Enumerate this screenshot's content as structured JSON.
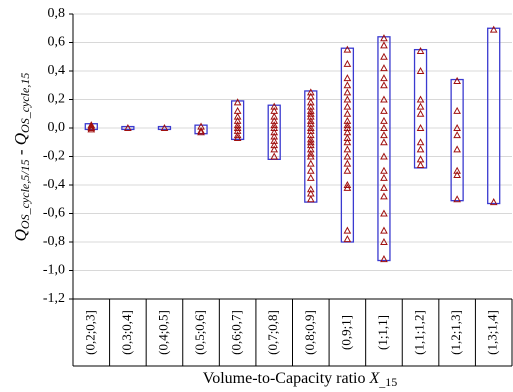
{
  "chart_data": {
    "type": "range_strip",
    "x_label": {
      "text": "Volume-to-Capacity ratio ",
      "var": "X",
      "sub": "_15"
    },
    "y_label": {
      "q1": "Q",
      "sub1": "OS_cycle,5/15",
      "sep": " - ",
      "q2": "Q",
      "sub2": "OS_cycle,15"
    },
    "categories": [
      "(0,2;0,3]",
      "(0,3;0,4]",
      "(0,4;0,5]",
      "(0,5;0,6]",
      "(0,6;0,7]",
      "(0,7;0,8]",
      "(0,8;0,9]",
      "(0,9;1]",
      "(1;1,1]",
      "(1,1;1,2]",
      "(1,2;1,3]",
      "(1,3;1,4]"
    ],
    "max": [
      0.03,
      0.01,
      0.01,
      0.02,
      0.19,
      0.16,
      0.26,
      0.56,
      0.64,
      0.55,
      0.34,
      0.7
    ],
    "min": [
      -0.01,
      -0.01,
      -0.01,
      -0.04,
      -0.08,
      -0.22,
      -0.52,
      -0.8,
      -0.93,
      -0.28,
      -0.51,
      -0.53
    ],
    "points": [
      [
        0.02,
        0.01,
        0.0,
        -0.01
      ],
      [
        0.0
      ],
      [
        0.0
      ],
      [
        0.01,
        -0.02,
        -0.03
      ],
      [
        0.18,
        0.12,
        0.08,
        0.05,
        0.02,
        0.0,
        -0.02,
        -0.05,
        -0.07
      ],
      [
        0.15,
        0.12,
        0.08,
        0.05,
        0.02,
        0.0,
        -0.03,
        -0.06,
        -0.09,
        -0.12,
        -0.15,
        -0.2
      ],
      [
        0.25,
        0.22,
        0.18,
        0.15,
        0.12,
        0.1,
        0.08,
        0.05,
        0.03,
        0.0,
        -0.02,
        -0.05,
        -0.08,
        -0.1,
        -0.12,
        -0.15,
        -0.18,
        -0.2,
        -0.25,
        -0.3,
        -0.35,
        -0.43,
        -0.46,
        -0.5
      ],
      [
        0.55,
        0.45,
        0.35,
        0.3,
        0.25,
        0.2,
        0.15,
        0.1,
        0.05,
        0.02,
        0.0,
        -0.03,
        -0.07,
        -0.1,
        -0.15,
        -0.2,
        -0.25,
        -0.3,
        -0.4,
        -0.42,
        -0.72,
        -0.78
      ],
      [
        0.63,
        0.58,
        0.5,
        0.42,
        0.35,
        0.3,
        0.2,
        0.12,
        0.05,
        0.0,
        -0.05,
        -0.1,
        -0.2,
        -0.3,
        -0.35,
        -0.42,
        -0.48,
        -0.6,
        -0.72,
        -0.8,
        -0.92
      ],
      [
        0.54,
        0.4,
        0.2,
        0.15,
        0.1,
        0.0,
        -0.1,
        -0.15,
        -0.22,
        -0.26
      ],
      [
        0.33,
        0.12,
        0.0,
        -0.05,
        -0.15,
        -0.3,
        -0.33,
        -0.5
      ],
      [
        0.69,
        -0.52
      ]
    ],
    "box_color": "#3a3ad0",
    "point_color": "#a01010",
    "ylim": [
      -1.2,
      0.8
    ],
    "yticks": [
      {
        "value": -1.2,
        "label": "-1,2"
      },
      {
        "value": -1.0,
        "label": "-1,0"
      },
      {
        "value": -0.8,
        "label": "-0,8"
      },
      {
        "value": -0.6,
        "label": "-0,6"
      },
      {
        "value": -0.4,
        "label": "-0,4"
      },
      {
        "value": -0.2,
        "label": "-0,2"
      },
      {
        "value": 0,
        "label": "0,0"
      },
      {
        "value": 0.2,
        "label": "0,2"
      },
      {
        "value": 0.4,
        "label": "0,4"
      },
      {
        "value": 0.6,
        "label": "0,6"
      },
      {
        "value": 0.8,
        "label": "0,8"
      }
    ],
    "grid": true
  }
}
